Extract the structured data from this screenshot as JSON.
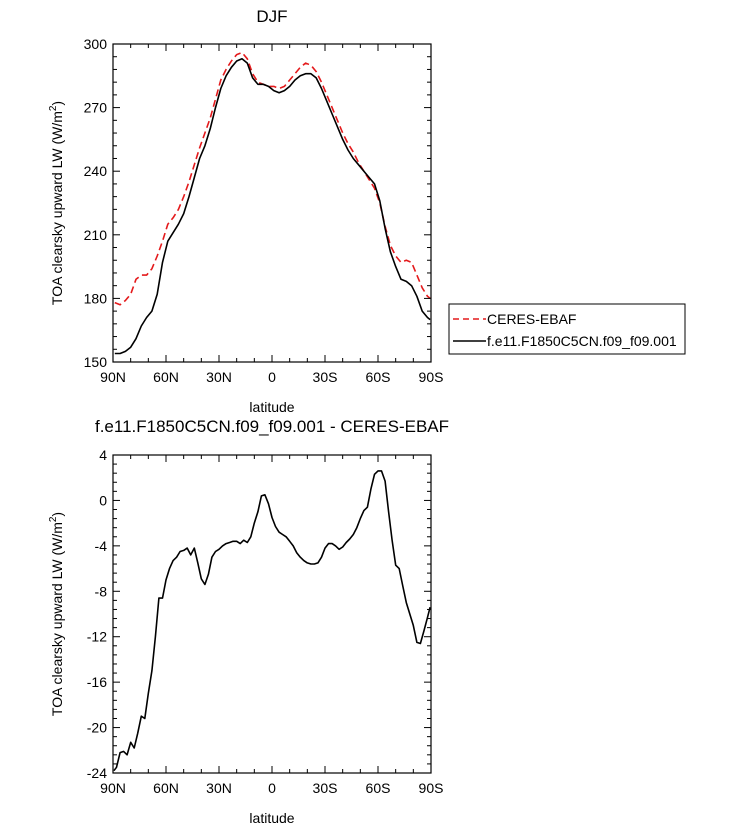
{
  "chart_data": [
    {
      "type": "line",
      "title": "DJF",
      "xlabel": "latitude",
      "ylabel": "TOA clearsky upward LW (W/m",
      "ylabel_sup": "2",
      "ylabel_end": ")",
      "xlim": [
        90,
        -90
      ],
      "ylim": [
        150,
        300
      ],
      "xticks": [
        90,
        60,
        30,
        0,
        -30,
        -60,
        -90
      ],
      "xticklabels": [
        "90N",
        "60N",
        "30N",
        "0",
        "30S",
        "60S",
        "90S"
      ],
      "yticks": [
        150,
        180,
        210,
        240,
        270,
        300
      ],
      "yticklabels": [
        "150",
        "180",
        "210",
        "240",
        "270",
        "300"
      ],
      "grid": false,
      "legend_position": "right",
      "series": [
        {
          "name": "CERES-EBAF",
          "color": "#e41a1c",
          "dash": "dashed",
          "x": [
            89,
            86,
            83,
            80,
            77,
            74,
            71,
            68,
            65,
            62,
            59,
            56,
            53,
            50,
            47,
            44,
            41,
            38,
            35,
            32,
            29,
            26,
            23,
            20,
            17,
            14,
            11,
            8,
            5,
            2,
            -1,
            -4,
            -7,
            -10,
            -13,
            -16,
            -19,
            -22,
            -25,
            -28,
            -31,
            -34,
            -37,
            -40,
            -43,
            -46,
            -49,
            -52,
            -55,
            -58,
            -61,
            -64,
            -67,
            -70,
            -73,
            -76,
            -79,
            -82,
            -85,
            -88,
            -89.5
          ],
          "y": [
            178,
            177,
            179,
            182,
            189,
            191,
            191,
            194,
            200,
            207,
            215,
            218,
            222,
            228,
            235,
            243,
            251,
            258,
            265,
            274,
            283,
            288,
            292,
            295,
            296,
            293,
            286,
            282,
            281,
            280,
            280,
            279,
            280,
            283,
            286,
            289,
            291,
            290,
            287,
            282,
            276,
            270,
            264,
            258,
            253,
            249,
            244,
            240,
            236,
            232,
            225,
            214,
            205,
            200,
            197,
            198,
            197,
            191,
            185,
            181,
            180
          ]
        },
        {
          "name": "f.e11.F1850C5CN.f09_f09.001",
          "color": "#000000",
          "dash": "solid",
          "x": [
            89,
            86,
            83,
            80,
            77,
            74,
            71,
            68,
            65,
            62,
            59,
            56,
            53,
            50,
            47,
            44,
            41,
            38,
            35,
            32,
            29,
            26,
            23,
            20,
            17,
            14,
            11,
            8,
            5,
            2,
            -1,
            -4,
            -7,
            -10,
            -13,
            -16,
            -19,
            -22,
            -25,
            -28,
            -31,
            -34,
            -37,
            -40,
            -43,
            -46,
            -49,
            -52,
            -55,
            -58,
            -61,
            -64,
            -67,
            -70,
            -73,
            -76,
            -79,
            -82,
            -85,
            -88,
            -89.5
          ],
          "y": [
            154,
            154,
            155,
            157,
            161,
            167,
            171,
            174,
            182,
            197,
            207,
            211,
            215,
            220,
            228,
            237,
            246,
            252,
            260,
            270,
            279,
            285,
            289,
            292,
            293,
            291,
            284,
            281,
            281,
            280,
            278,
            277,
            278,
            280,
            283,
            285,
            286,
            286,
            284,
            279,
            273,
            267,
            261,
            255,
            250,
            246,
            243,
            240,
            237,
            234,
            226,
            213,
            202,
            195,
            189,
            188,
            186,
            181,
            174,
            171,
            170
          ]
        }
      ]
    },
    {
      "type": "line",
      "title": "f.e11.F1850C5CN.f09_f09.001 - CERES-EBAF",
      "xlabel": "latitude",
      "ylabel": "TOA clearsky upward LW (W/m",
      "ylabel_sup": "2",
      "ylabel_end": ")",
      "xlim": [
        90,
        -90
      ],
      "ylim": [
        -24,
        4
      ],
      "xticks": [
        90,
        60,
        30,
        0,
        -30,
        -60,
        -90
      ],
      "xticklabels": [
        "90N",
        "60N",
        "30N",
        "0",
        "30S",
        "60S",
        "90S"
      ],
      "yticks": [
        -24,
        -20,
        -16,
        -12,
        -8,
        -4,
        0,
        4
      ],
      "yticklabels": [
        "-24",
        "-20",
        "-16",
        "-12",
        "-8",
        "-4",
        "0",
        "4"
      ],
      "grid": false,
      "series": [
        {
          "name": "",
          "color": "#000000",
          "dash": "solid",
          "x": [
            89.5,
            88,
            86,
            84,
            82,
            80,
            78,
            76,
            74,
            72,
            70,
            68,
            66,
            64,
            62,
            60,
            58,
            56,
            54,
            52,
            50,
            48,
            46,
            44,
            42,
            40,
            38,
            36,
            34,
            32,
            30,
            28,
            26,
            24,
            22,
            20,
            18,
            16,
            14,
            12,
            10,
            8,
            6,
            4,
            2,
            0,
            -2,
            -4,
            -6,
            -8,
            -10,
            -12,
            -14,
            -16,
            -18,
            -20,
            -22,
            -24,
            -26,
            -28,
            -30,
            -32,
            -34,
            -36,
            -38,
            -40,
            -42,
            -44,
            -46,
            -48,
            -50,
            -52,
            -54,
            -56,
            -58,
            -60,
            -62,
            -64,
            -66,
            -68,
            -70,
            -72,
            -74,
            -76,
            -78,
            -80,
            -82,
            -84,
            -86,
            -88,
            -89.5
          ],
          "y": [
            -23.8,
            -23.5,
            -22.2,
            -22.1,
            -22.4,
            -21.3,
            -21.8,
            -20.5,
            -19.0,
            -19.2,
            -17.0,
            -15.0,
            -12.0,
            -8.6,
            -8.6,
            -7.0,
            -6.0,
            -5.3,
            -5.0,
            -4.5,
            -4.4,
            -4.2,
            -4.8,
            -4.2,
            -5.5,
            -6.9,
            -7.4,
            -6.5,
            -5.0,
            -4.5,
            -4.3,
            -4.0,
            -3.8,
            -3.7,
            -3.6,
            -3.6,
            -3.8,
            -3.5,
            -3.7,
            -3.2,
            -2.0,
            -1.0,
            0.4,
            0.5,
            -0.3,
            -1.5,
            -2.3,
            -2.8,
            -3.0,
            -3.2,
            -3.6,
            -4.0,
            -4.6,
            -5.0,
            -5.3,
            -5.5,
            -5.6,
            -5.6,
            -5.5,
            -5.0,
            -4.2,
            -3.8,
            -3.8,
            -4.0,
            -4.3,
            -4.1,
            -3.7,
            -3.4,
            -3.0,
            -2.4,
            -1.6,
            -0.9,
            -0.6,
            1.0,
            2.3,
            2.6,
            2.6,
            1.7,
            -1.0,
            -3.5,
            -5.7,
            -6.0,
            -7.5,
            -9.0,
            -10.0,
            -11.0,
            -12.5,
            -12.6,
            -11.5,
            -10.3,
            -9.4
          ]
        }
      ]
    }
  ]
}
